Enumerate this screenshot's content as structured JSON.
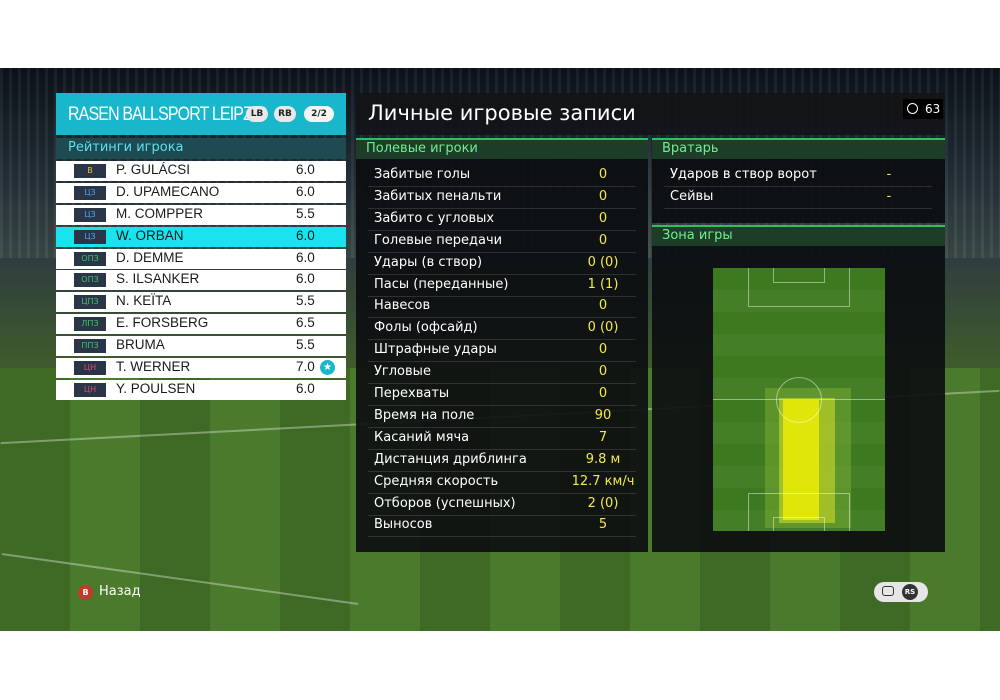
{
  "team": {
    "name": "RASEN BALLSPORT LEIPZIG",
    "btn_lb": "LB",
    "btn_rb": "RB",
    "page": "2/2"
  },
  "ratings_title": "Рейтинги игрока",
  "players": [
    {
      "pos": "В",
      "pos_color": "#e9c43a",
      "name": "P. GULÁCSI",
      "rating": "6.0"
    },
    {
      "pos": "ЦЗ",
      "pos_color": "#4aa6e8",
      "name": "D. UPAMECANO",
      "rating": "6.0"
    },
    {
      "pos": "ЦЗ",
      "pos_color": "#4aa6e8",
      "name": "M. COMPPER",
      "rating": "5.5"
    },
    {
      "pos": "ЦЗ",
      "pos_color": "#4aa6e8",
      "name": "W. ORBAN",
      "rating": "6.0",
      "selected": true
    },
    {
      "pos": "ОПЗ",
      "pos_color": "#43c16a",
      "name": "D. DEMME",
      "rating": "6.0"
    },
    {
      "pos": "ОПЗ",
      "pos_color": "#43c16a",
      "name": "S. ILSANKER",
      "rating": "6.0"
    },
    {
      "pos": "ЦПЗ",
      "pos_color": "#43c16a",
      "name": "N. KEÏTA",
      "rating": "5.5"
    },
    {
      "pos": "ЛПЗ",
      "pos_color": "#43c16a",
      "name": "E. FORSBERG",
      "rating": "6.5"
    },
    {
      "pos": "ППЗ",
      "pos_color": "#43c16a",
      "name": "BRUMA",
      "rating": "5.5"
    },
    {
      "pos": "ЦН",
      "pos_color": "#e0467a",
      "name": "T. WERNER",
      "rating": "7.0",
      "star": "★"
    },
    {
      "pos": "ЦН",
      "pos_color": "#e0467a",
      "name": "Y. POULSEN",
      "rating": "6.0"
    }
  ],
  "title": "Личные игровые записи",
  "timer": "63",
  "field_section": "Полевые игроки",
  "stats": [
    {
      "label": "Забитые голы",
      "value": "0"
    },
    {
      "label": "Забитых пенальти",
      "value": "0"
    },
    {
      "label": "Забито с угловых",
      "value": "0"
    },
    {
      "label": "Голевые передачи",
      "value": "0"
    },
    {
      "label": "Удары (в створ)",
      "value": "0 (0)"
    },
    {
      "label": "Пасы (переданные)",
      "value": "1 (1)"
    },
    {
      "label": "Навесов",
      "value": "0"
    },
    {
      "label": "Фолы (офсайд)",
      "value": "0 (0)"
    },
    {
      "label": "Штрафные удары",
      "value": "0"
    },
    {
      "label": "Угловые",
      "value": "0"
    },
    {
      "label": "Перехваты",
      "value": "0"
    },
    {
      "label": "Время на поле",
      "value": "90"
    },
    {
      "label": "Касаний мяча",
      "value": "7"
    },
    {
      "label": "Дистанция дриблинга",
      "value": "9.8 м"
    },
    {
      "label": "Средняя скорость",
      "value": "12.7 км/ч"
    },
    {
      "label": "Отборов (успешных)",
      "value": "2 (0)"
    },
    {
      "label": "Выносов",
      "value": "5"
    }
  ],
  "gk_section": "Вратарь",
  "gk_stats": [
    {
      "label": "Ударов в створ ворот",
      "value": "-"
    },
    {
      "label": "Сейвы",
      "value": "-"
    }
  ],
  "zone_section": "Зона игры",
  "back_button": "B",
  "back_label": "Назад",
  "right_icons": "RS",
  "colors": {
    "accent": "#19b7cb",
    "stat_value": "#f6ea4a",
    "section_text": "#6ff08f"
  }
}
